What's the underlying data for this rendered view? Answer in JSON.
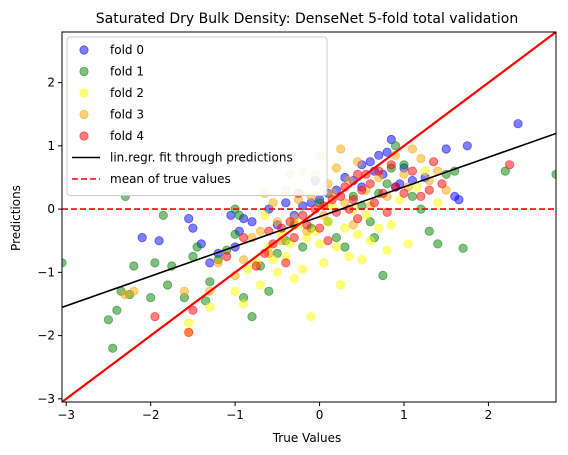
{
  "chart_data": {
    "type": "scatter",
    "title": "Saturated Dry Bulk Density: DenseNet 5-fold total validation",
    "xlabel": "True Values",
    "ylabel": "Predictions",
    "xlim": [
      -3.05,
      2.8
    ],
    "ylim": [
      -3.05,
      2.8
    ],
    "xticks": [
      -3,
      -2,
      -1,
      0,
      1,
      2
    ],
    "yticks": [
      -3,
      -2,
      -1,
      0,
      1,
      2
    ],
    "grid": false,
    "legend_position": "top-left",
    "fit_line": {
      "label": "lin.regr. fit through predictions",
      "color": "#000000",
      "slope": 0.47,
      "intercept": -0.12
    },
    "identity_line": {
      "color": "#ff0000",
      "slope": 1,
      "intercept": 0
    },
    "mean_line": {
      "label": "mean of true values",
      "color": "#ff0000",
      "y": 0
    },
    "series": [
      {
        "name": "fold 0",
        "color": "#0000ff",
        "points": [
          [
            -2.1,
            -0.45
          ],
          [
            -1.9,
            -0.5
          ],
          [
            -1.55,
            -0.15
          ],
          [
            -1.5,
            -0.3
          ],
          [
            -1.4,
            -0.55
          ],
          [
            -1.3,
            -0.85
          ],
          [
            -1.2,
            -0.7
          ],
          [
            -1.05,
            -0.1
          ],
          [
            -1.0,
            -0.6
          ],
          [
            -0.95,
            -0.35
          ],
          [
            -0.9,
            -0.15
          ],
          [
            -0.8,
            -0.2
          ],
          [
            -0.6,
            0.0
          ],
          [
            -0.5,
            -0.25
          ],
          [
            -0.4,
            0.1
          ],
          [
            -0.3,
            -0.1
          ],
          [
            -0.2,
            0.05
          ],
          [
            -0.1,
            0.1
          ],
          [
            0.0,
            0.15
          ],
          [
            0.1,
            0.25
          ],
          [
            0.2,
            0.3
          ],
          [
            0.3,
            0.5
          ],
          [
            0.4,
            0.45
          ],
          [
            0.5,
            0.7
          ],
          [
            0.6,
            0.75
          ],
          [
            0.65,
            0.6
          ],
          [
            0.7,
            0.85
          ],
          [
            0.75,
            0.55
          ],
          [
            0.8,
            0.9
          ],
          [
            0.85,
            1.1
          ],
          [
            0.9,
            0.35
          ],
          [
            0.95,
            0.4
          ],
          [
            1.0,
            0.65
          ],
          [
            1.1,
            0.45
          ],
          [
            1.25,
            0.5
          ],
          [
            1.5,
            0.95
          ],
          [
            1.6,
            0.2
          ],
          [
            1.65,
            0.15
          ],
          [
            1.75,
            1.0
          ],
          [
            2.35,
            1.35
          ],
          [
            -0.05,
            0.45
          ],
          [
            0.5,
            0.35
          ]
        ]
      },
      {
        "name": "fold 1",
        "color": "#008000",
        "points": [
          [
            -3.05,
            -0.85
          ],
          [
            -2.5,
            -1.75
          ],
          [
            -2.45,
            -2.2
          ],
          [
            -2.4,
            -1.6
          ],
          [
            -2.35,
            -1.3
          ],
          [
            -2.25,
            -1.35
          ],
          [
            -2.2,
            -0.9
          ],
          [
            -2.0,
            -1.4
          ],
          [
            -1.95,
            -0.85
          ],
          [
            -1.8,
            -1.2
          ],
          [
            -1.75,
            -0.9
          ],
          [
            -1.6,
            -1.4
          ],
          [
            -1.5,
            -0.75
          ],
          [
            -1.45,
            -0.6
          ],
          [
            -1.35,
            -1.45
          ],
          [
            -1.3,
            -1.15
          ],
          [
            -1.2,
            -0.8
          ],
          [
            -1.1,
            -0.65
          ],
          [
            -1.0,
            -0.4
          ],
          [
            -0.95,
            -0.1
          ],
          [
            -0.9,
            -1.4
          ],
          [
            -0.8,
            -1.7
          ],
          [
            -0.7,
            -0.9
          ],
          [
            -0.6,
            -1.3
          ],
          [
            -0.5,
            -0.7
          ],
          [
            -0.4,
            -0.5
          ],
          [
            -0.3,
            -0.25
          ],
          [
            -0.2,
            -0.6
          ],
          [
            -0.1,
            -0.3
          ],
          [
            0.0,
            0.1
          ],
          [
            0.1,
            -0.2
          ],
          [
            0.2,
            -0.45
          ],
          [
            0.3,
            -0.6
          ],
          [
            0.4,
            0.2
          ],
          [
            0.5,
            0.05
          ],
          [
            0.6,
            -0.2
          ],
          [
            0.65,
            -0.45
          ],
          [
            0.7,
            0.25
          ],
          [
            0.75,
            -1.05
          ],
          [
            0.8,
            0.4
          ],
          [
            0.85,
            0.65
          ],
          [
            0.9,
            1.0
          ],
          [
            1.0,
            0.7
          ],
          [
            1.1,
            0.2
          ],
          [
            1.2,
            0.0
          ],
          [
            1.3,
            -0.35
          ],
          [
            1.4,
            -0.55
          ],
          [
            1.5,
            0.55
          ],
          [
            1.6,
            0.6
          ],
          [
            1.7,
            -0.62
          ],
          [
            2.2,
            0.6
          ],
          [
            2.8,
            0.55
          ],
          [
            -1.85,
            -0.1
          ],
          [
            -2.3,
            0.2
          ],
          [
            -1.0,
            0.0
          ]
        ]
      },
      {
        "name": "fold 2",
        "color": "#ffff00",
        "points": [
          [
            -1.55,
            -1.8
          ],
          [
            -1.55,
            -1.95
          ],
          [
            -1.3,
            -1.55
          ],
          [
            -1.0,
            -1.3
          ],
          [
            -0.9,
            -1.5
          ],
          [
            -0.85,
            -0.95
          ],
          [
            -0.75,
            -0.85
          ],
          [
            -0.7,
            -1.2
          ],
          [
            -0.6,
            -0.6
          ],
          [
            -0.55,
            -0.8
          ],
          [
            -0.5,
            -1.0
          ],
          [
            -0.45,
            -0.4
          ],
          [
            -0.4,
            -0.75
          ],
          [
            -0.35,
            -0.55
          ],
          [
            -0.3,
            -1.1
          ],
          [
            -0.25,
            -0.25
          ],
          [
            -0.2,
            -0.95
          ],
          [
            -0.15,
            -0.45
          ],
          [
            -0.1,
            -1.7
          ],
          [
            -0.05,
            -0.35
          ],
          [
            0.0,
            -0.55
          ],
          [
            0.05,
            -0.85
          ],
          [
            0.1,
            -0.2
          ],
          [
            0.15,
            0.05
          ],
          [
            0.2,
            -0.6
          ],
          [
            0.25,
            -1.2
          ],
          [
            0.3,
            -0.3
          ],
          [
            0.35,
            -0.75
          ],
          [
            0.4,
            0.0
          ],
          [
            0.45,
            -0.4
          ],
          [
            0.55,
            -0.1
          ],
          [
            0.6,
            -0.5
          ],
          [
            0.7,
            -0.3
          ],
          [
            0.8,
            -0.65
          ],
          [
            0.85,
            -0.25
          ],
          [
            0.95,
            0.15
          ],
          [
            1.05,
            -0.55
          ],
          [
            1.15,
            0.35
          ],
          [
            1.25,
            0.6
          ],
          [
            1.4,
            0.1
          ],
          [
            -0.65,
            -0.1
          ],
          [
            0.5,
            -0.8
          ]
        ]
      },
      {
        "name": "fold 3",
        "color": "#ffa500",
        "points": [
          [
            -2.3,
            -1.35
          ],
          [
            -2.2,
            -1.3
          ],
          [
            -1.6,
            -1.3
          ],
          [
            -1.3,
            -1.3
          ],
          [
            -1.2,
            -0.85
          ],
          [
            -1.0,
            -1.05
          ],
          [
            -0.9,
            -0.8
          ],
          [
            -0.8,
            -0.45
          ],
          [
            -0.7,
            -0.35
          ],
          [
            -0.6,
            -0.7
          ],
          [
            -0.55,
            0.1
          ],
          [
            -0.5,
            -0.2
          ],
          [
            -0.45,
            -0.5
          ],
          [
            -0.4,
            0.3
          ],
          [
            -0.35,
            0.55
          ],
          [
            -0.3,
            -0.15
          ],
          [
            -0.25,
            0.15
          ],
          [
            -0.2,
            0.6
          ],
          [
            -0.15,
            -0.35
          ],
          [
            -0.1,
            0.2
          ],
          [
            -0.05,
            0.55
          ],
          [
            0.0,
            0.85
          ],
          [
            0.05,
            -0.1
          ],
          [
            0.1,
            0.4
          ],
          [
            0.15,
            0.25
          ],
          [
            0.2,
            0.65
          ],
          [
            0.3,
            0.1
          ],
          [
            0.35,
            0.45
          ],
          [
            0.4,
            -0.25
          ],
          [
            0.45,
            0.75
          ],
          [
            0.55,
            0.3
          ],
          [
            0.6,
            0.05
          ],
          [
            0.7,
            0.5
          ],
          [
            0.8,
            0.2
          ],
          [
            0.9,
            0.85
          ],
          [
            1.0,
            0.55
          ],
          [
            1.05,
            0.35
          ],
          [
            1.1,
            0.95
          ],
          [
            1.2,
            0.8
          ],
          [
            1.3,
            0.45
          ],
          [
            1.4,
            0.6
          ],
          [
            1.5,
            0.3
          ],
          [
            -0.65,
            0.25
          ],
          [
            0.25,
            0.95
          ]
        ]
      },
      {
        "name": "fold 4",
        "color": "#ff0000",
        "points": [
          [
            -1.95,
            -1.7
          ],
          [
            -1.55,
            -1.95
          ],
          [
            -1.5,
            -1.6
          ],
          [
            -1.1,
            -0.75
          ],
          [
            -0.9,
            -0.45
          ],
          [
            -0.75,
            -0.9
          ],
          [
            -0.65,
            -0.7
          ],
          [
            -0.6,
            -0.35
          ],
          [
            -0.55,
            -0.55
          ],
          [
            -0.45,
            -0.3
          ],
          [
            -0.4,
            -0.85
          ],
          [
            -0.35,
            -0.2
          ],
          [
            -0.3,
            -0.45
          ],
          [
            -0.2,
            -0.1
          ],
          [
            -0.15,
            -0.25
          ],
          [
            -0.05,
            0.0
          ],
          [
            0.0,
            -0.3
          ],
          [
            0.05,
            0.05
          ],
          [
            0.1,
            -0.5
          ],
          [
            0.15,
            0.15
          ],
          [
            0.2,
            -0.05
          ],
          [
            0.25,
            0.2
          ],
          [
            0.3,
            0.35
          ],
          [
            0.35,
            0.0
          ],
          [
            0.4,
            0.15
          ],
          [
            0.45,
            -0.15
          ],
          [
            0.5,
            0.3
          ],
          [
            0.55,
            0.55
          ],
          [
            0.6,
            0.4
          ],
          [
            0.65,
            0.1
          ],
          [
            0.7,
            0.6
          ],
          [
            0.75,
            0.25
          ],
          [
            0.8,
            -0.05
          ],
          [
            0.85,
            0.7
          ],
          [
            0.9,
            0.35
          ],
          [
            1.0,
            0.25
          ],
          [
            1.1,
            0.6
          ],
          [
            1.2,
            0.2
          ],
          [
            1.3,
            0.3
          ],
          [
            1.35,
            0.75
          ],
          [
            1.45,
            0.4
          ],
          [
            2.25,
            0.7
          ],
          [
            -0.25,
            0.25
          ],
          [
            0.45,
            0.55
          ]
        ]
      }
    ]
  }
}
